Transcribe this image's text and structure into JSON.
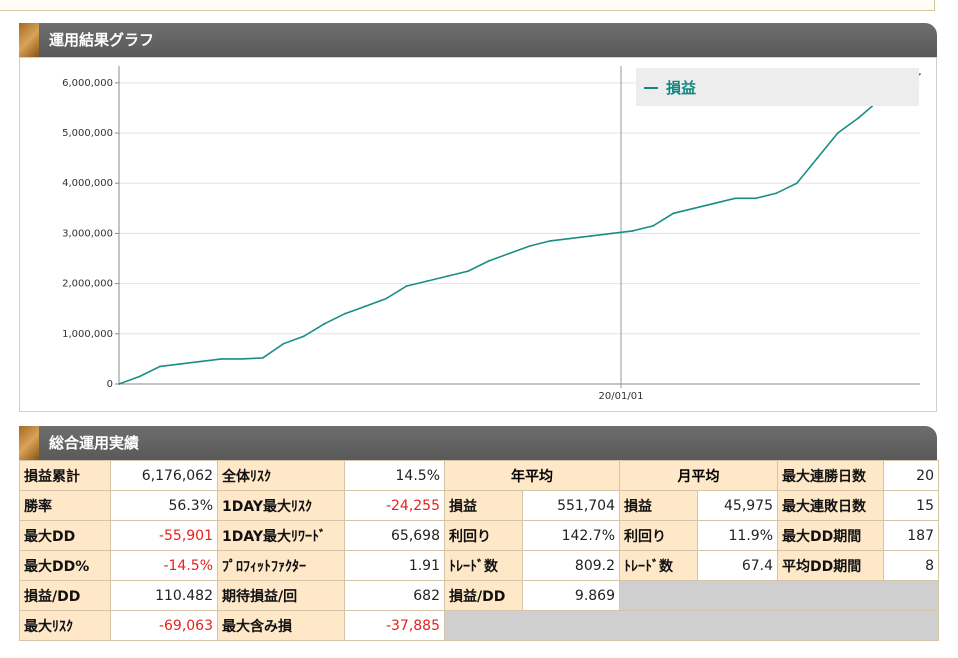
{
  "chart_section": {
    "title": "運用結果グラフ",
    "legend_label": "損益"
  },
  "chart_data": {
    "type": "line",
    "title": "",
    "xlabel": "",
    "ylabel": "",
    "ylim": [
      0,
      6176062
    ],
    "y_ticks": [
      "0",
      "1,000,000",
      "2,000,000",
      "3,000,000",
      "4,000,000",
      "5,000,000",
      "6,000,000"
    ],
    "x_tick_labels": [
      "20/01/01"
    ],
    "grid": true,
    "legend_position": "top-right",
    "series": [
      {
        "name": "損益",
        "color": "#1b8d86",
        "values": [
          0,
          150000,
          350000,
          400000,
          450000,
          500000,
          500000,
          520000,
          800000,
          950000,
          1200000,
          1400000,
          1550000,
          1700000,
          1950000,
          2050000,
          2150000,
          2250000,
          2450000,
          2600000,
          2750000,
          2850000,
          2900000,
          2950000,
          3000000,
          3050000,
          3150000,
          3400000,
          3500000,
          3600000,
          3700000,
          3700000,
          3800000,
          4000000,
          4500000,
          5000000,
          5300000,
          5650000,
          5850000,
          6176062
        ]
      }
    ]
  },
  "stats_section": {
    "title": "総合運用実績"
  },
  "stats": {
    "col1": [
      {
        "label": "損益累計",
        "value": "6,176,062"
      },
      {
        "label": "勝率",
        "value": "56.3%"
      },
      {
        "label": "最大DD",
        "value": "-55,901"
      },
      {
        "label": "最大DD%",
        "value": "-14.5%"
      },
      {
        "label": "損益/DD",
        "value": "110.482"
      },
      {
        "label": "最大ﾘｽｸ",
        "value": "-69,063"
      }
    ],
    "col2": [
      {
        "label": "全体ﾘｽｸ",
        "value": "14.5%"
      },
      {
        "label": "1DAY最大ﾘｽｸ",
        "value": "-24,255"
      },
      {
        "label": "1DAY最大ﾘﾜｰﾄﾞ",
        "value": "65,698"
      },
      {
        "label": "ﾌﾟﾛﾌｨｯﾄﾌｧｸﾀｰ",
        "value": "1.91"
      },
      {
        "label": "期待損益/回",
        "value": "682"
      },
      {
        "label": "最大含み損",
        "value": "-37,885"
      }
    ],
    "yearly": {
      "header": "年平均",
      "rows": [
        {
          "label": "損益",
          "value": "551,704"
        },
        {
          "label": "利回り",
          "value": "142.7%"
        },
        {
          "label": "ﾄﾚｰﾄﾞ数",
          "value": "809.2"
        },
        {
          "label": "損益/DD",
          "value": "9.869"
        }
      ]
    },
    "monthly": {
      "header": "月平均",
      "rows": [
        {
          "label": "損益",
          "value": "45,975"
        },
        {
          "label": "利回り",
          "value": "11.9%"
        },
        {
          "label": "ﾄﾚｰﾄﾞ数",
          "value": "67.4"
        }
      ]
    },
    "streaks": [
      {
        "label": "最大連勝日数",
        "value": "20"
      },
      {
        "label": "最大連敗日数",
        "value": "15"
      },
      {
        "label": "最大DD期間",
        "value": "187"
      },
      {
        "label": "平均DD期間",
        "value": "8"
      }
    ]
  }
}
